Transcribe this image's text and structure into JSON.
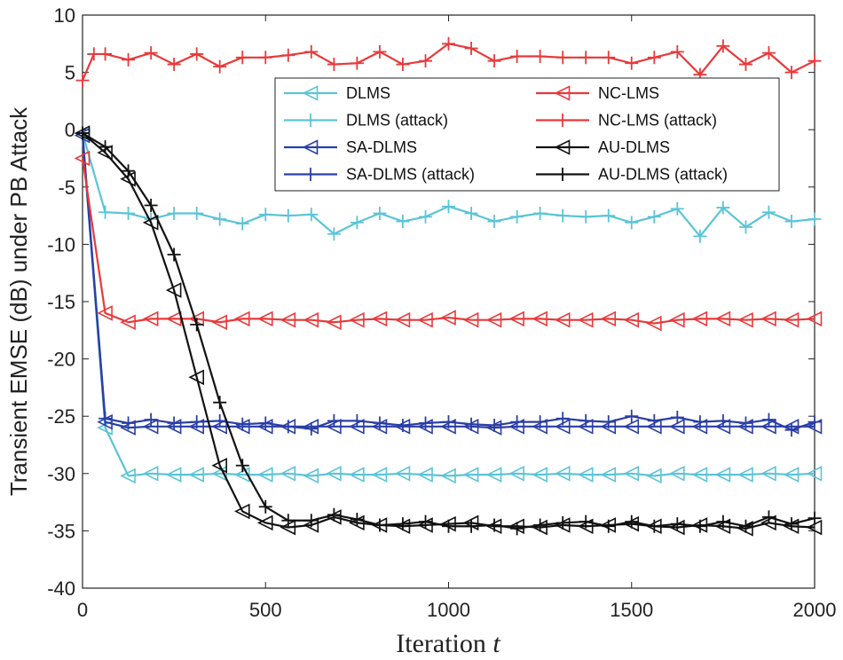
{
  "chart_data": {
    "type": "line",
    "title": "",
    "xlabel": "Iteration",
    "xlabel_var": "t",
    "ylabel": "Transient EMSE (dB) under PB Attack",
    "xlim": [
      0,
      2000
    ],
    "ylim": [
      -40,
      10
    ],
    "xticks": [
      0,
      500,
      1000,
      1500,
      2000
    ],
    "yticks": [
      10,
      5,
      0,
      -5,
      -10,
      -15,
      -20,
      -25,
      -30,
      -35,
      -40
    ],
    "grid": false,
    "legend_position": "top-right",
    "series": [
      {
        "name": "DLMS",
        "color": "#5bc4d6",
        "marker": "triangle-left",
        "x": [
          0,
          62,
          125,
          187,
          250,
          312,
          375,
          437,
          500,
          562,
          625,
          687,
          750,
          812,
          875,
          937,
          1000,
          1062,
          1125,
          1187,
          1250,
          1312,
          1375,
          1437,
          1500,
          1562,
          1625,
          1687,
          1750,
          1812,
          1875,
          1937,
          2000
        ],
        "values": [
          -0.5,
          -26,
          -30.2,
          -30,
          -30.1,
          -30.1,
          -30,
          -30.1,
          -30.1,
          -30,
          -30.2,
          -30,
          -30.1,
          -30.1,
          -30,
          -30.1,
          -30.2,
          -30.1,
          -30.1,
          -30,
          -30.1,
          -30,
          -30.1,
          -30.1,
          -30,
          -30.2,
          -30,
          -30.1,
          -30.1,
          -30.1,
          -30,
          -30.1,
          -30
        ]
      },
      {
        "name": "DLMS (attack)",
        "color": "#5bc4d6",
        "marker": "plus",
        "x": [
          0,
          62,
          125,
          187,
          250,
          312,
          375,
          437,
          500,
          562,
          625,
          687,
          750,
          812,
          875,
          937,
          1000,
          1062,
          1125,
          1187,
          1250,
          1312,
          1375,
          1437,
          1500,
          1562,
          1625,
          1687,
          1750,
          1812,
          1875,
          1937,
          2000
        ],
        "values": [
          -0.3,
          -7.2,
          -7.3,
          -7.8,
          -7.3,
          -7.3,
          -7.8,
          -8.2,
          -7.4,
          -7.5,
          -7.4,
          -9.1,
          -8.1,
          -7.3,
          -8.0,
          -7.6,
          -6.7,
          -7.3,
          -8.0,
          -7.6,
          -7.3,
          -7.5,
          -7.6,
          -7.5,
          -8.1,
          -7.6,
          -6.9,
          -9.3,
          -6.8,
          -8.5,
          -7.2,
          -8.0,
          -7.8
        ]
      },
      {
        "name": "SA-DLMS",
        "color": "#2b3ea6",
        "marker": "triangle-left",
        "x": [
          0,
          62,
          125,
          187,
          250,
          312,
          375,
          437,
          500,
          562,
          625,
          687,
          750,
          812,
          875,
          937,
          1000,
          1062,
          1125,
          1187,
          1250,
          1312,
          1375,
          1437,
          1500,
          1562,
          1625,
          1687,
          1750,
          1812,
          1875,
          1937,
          2000
        ],
        "values": [
          -0.5,
          -25.5,
          -26,
          -25.9,
          -25.9,
          -25.9,
          -25.9,
          -25.9,
          -25.9,
          -25.9,
          -25.9,
          -25.9,
          -25.9,
          -25.9,
          -25.9,
          -25.9,
          -25.9,
          -25.9,
          -26,
          -25.9,
          -25.9,
          -25.9,
          -25.9,
          -25.9,
          -25.9,
          -25.9,
          -25.9,
          -25.9,
          -25.9,
          -25.9,
          -25.9,
          -25.9,
          -25.9
        ]
      },
      {
        "name": "SA-DLMS (attack)",
        "color": "#2b3ea6",
        "marker": "plus",
        "x": [
          0,
          62,
          125,
          187,
          250,
          312,
          375,
          437,
          500,
          562,
          625,
          687,
          750,
          812,
          875,
          937,
          1000,
          1062,
          1125,
          1187,
          1250,
          1312,
          1375,
          1437,
          1500,
          1562,
          1625,
          1687,
          1750,
          1812,
          1875,
          1937,
          2000
        ],
        "values": [
          -0.3,
          -25.2,
          -25.6,
          -25.3,
          -25.6,
          -25.5,
          -25.4,
          -25.7,
          -25.6,
          -25.9,
          -26.1,
          -25.4,
          -25.4,
          -25.6,
          -25.8,
          -25.6,
          -25.5,
          -25.7,
          -25.8,
          -25.5,
          -25.5,
          -25.2,
          -25.4,
          -25.5,
          -25.0,
          -25.4,
          -25.1,
          -25.5,
          -25.4,
          -25.6,
          -25.3,
          -26.2,
          -25.5
        ]
      },
      {
        "name": "NC-LMS",
        "color": "#e8393a",
        "marker": "triangle-left",
        "x": [
          0,
          62,
          125,
          187,
          250,
          312,
          375,
          437,
          500,
          562,
          625,
          687,
          750,
          812,
          875,
          937,
          1000,
          1062,
          1125,
          1187,
          1250,
          1312,
          1375,
          1437,
          1500,
          1562,
          1625,
          1687,
          1750,
          1812,
          1875,
          1937,
          2000
        ],
        "values": [
          -2.5,
          -16,
          -16.8,
          -16.5,
          -16.5,
          -16.5,
          -16.8,
          -16.5,
          -16.5,
          -16.6,
          -16.6,
          -16.8,
          -16.6,
          -16.5,
          -16.6,
          -16.6,
          -16.4,
          -16.6,
          -16.6,
          -16.5,
          -16.5,
          -16.6,
          -16.6,
          -16.5,
          -16.6,
          -16.9,
          -16.6,
          -16.5,
          -16.5,
          -16.6,
          -16.5,
          -16.6,
          -16.5
        ]
      },
      {
        "name": "NC-LMS (attack)",
        "color": "#e8393a",
        "marker": "plus",
        "x": [
          0,
          31,
          62,
          125,
          187,
          250,
          312,
          375,
          437,
          500,
          562,
          625,
          687,
          750,
          812,
          875,
          937,
          1000,
          1062,
          1125,
          1187,
          1250,
          1312,
          1375,
          1437,
          1500,
          1562,
          1625,
          1687,
          1750,
          1812,
          1875,
          1937,
          2000
        ],
        "values": [
          4.3,
          6.6,
          6.6,
          6.1,
          6.7,
          5.7,
          6.6,
          5.5,
          6.3,
          6.3,
          6.5,
          6.8,
          5.7,
          5.8,
          6.8,
          5.7,
          6.0,
          7.5,
          7.1,
          6.0,
          6.4,
          6.4,
          6.3,
          6.3,
          6.3,
          5.8,
          6.3,
          6.8,
          4.8,
          7.3,
          5.7,
          6.7,
          5.0,
          6.0
        ]
      },
      {
        "name": "AU-DLMS",
        "color": "#111111",
        "marker": "triangle-left",
        "x": [
          0,
          62,
          125,
          187,
          250,
          312,
          375,
          437,
          500,
          562,
          625,
          687,
          750,
          812,
          875,
          937,
          1000,
          1062,
          1125,
          1187,
          1250,
          1312,
          1375,
          1437,
          1500,
          1562,
          1625,
          1687,
          1750,
          1812,
          1875,
          1937,
          2000
        ],
        "values": [
          -0.3,
          -2,
          -4.3,
          -8.1,
          -14.0,
          -21.6,
          -29.3,
          -33.3,
          -34.3,
          -34.7,
          -34.5,
          -33.8,
          -34.3,
          -34.5,
          -34.6,
          -34.5,
          -34.4,
          -34.3,
          -34.6,
          -34.6,
          -34.7,
          -34.5,
          -34.6,
          -34.5,
          -34.4,
          -34.6,
          -34.7,
          -34.5,
          -34.6,
          -34.8,
          -34.3,
          -34.6,
          -34.7
        ]
      },
      {
        "name": "AU-DLMS (attack)",
        "color": "#111111",
        "marker": "plus",
        "x": [
          0,
          62,
          125,
          187,
          250,
          312,
          375,
          437,
          500,
          562,
          625,
          687,
          750,
          812,
          875,
          937,
          1000,
          1062,
          1125,
          1187,
          1250,
          1312,
          1375,
          1437,
          1500,
          1562,
          1625,
          1687,
          1750,
          1812,
          1875,
          1937,
          2000
        ],
        "values": [
          -0.3,
          -1.5,
          -3.6,
          -6.6,
          -10.9,
          -17.0,
          -23.8,
          -29.3,
          -32.9,
          -34.1,
          -34.1,
          -33.6,
          -34.0,
          -34.5,
          -34.4,
          -34.2,
          -34.6,
          -34.6,
          -34.5,
          -34.8,
          -34.5,
          -34.3,
          -34.2,
          -34.6,
          -34.2,
          -34.6,
          -34.4,
          -34.6,
          -34.2,
          -34.6,
          -33.8,
          -34.4,
          -33.9
        ]
      }
    ]
  }
}
